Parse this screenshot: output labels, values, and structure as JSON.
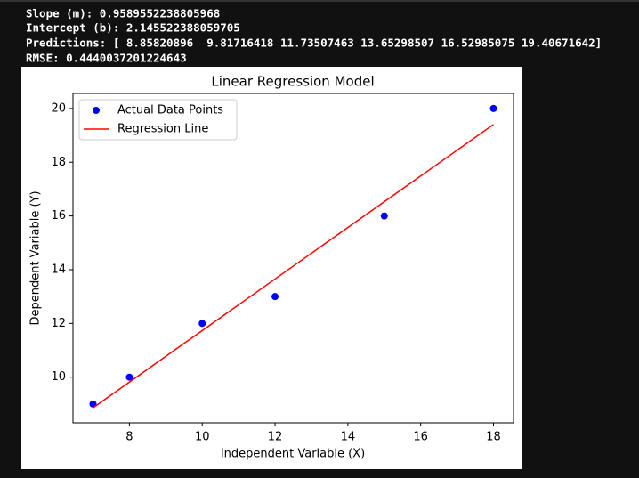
{
  "console": [
    "Slope (m): 0.9589552238805968",
    "Intercept (b): 2.145522388059705",
    "Predictions: [ 8.85820896  9.81716418 11.73507463 13.65298507 16.52985075 19.40671642]",
    "RMSE: 0.4440037201224643"
  ],
  "chart_data": {
    "type": "scatter",
    "title": "Linear Regression Model",
    "xlabel": "Independent Variable (X)",
    "ylabel": "Dependent Variable (Y)",
    "x": [
      7,
      8,
      10,
      12,
      15,
      18
    ],
    "series": [
      {
        "name": "Actual Data Points",
        "type": "scatter",
        "color": "#0000ff",
        "values": [
          9,
          10,
          12,
          13,
          16,
          20
        ]
      },
      {
        "name": "Regression Line",
        "type": "line",
        "color": "#ff0000",
        "values": [
          8.85820896,
          9.81716418,
          11.73507463,
          13.65298507,
          16.52985075,
          19.40671642
        ]
      }
    ],
    "xlim": [
      6.45,
      18.55
    ],
    "ylim": [
      8.3,
      20.56
    ],
    "xticks": [
      8,
      10,
      12,
      14,
      16,
      18
    ],
    "yticks": [
      10,
      12,
      14,
      16,
      18,
      20
    ],
    "grid": false,
    "legend": "upper left"
  }
}
